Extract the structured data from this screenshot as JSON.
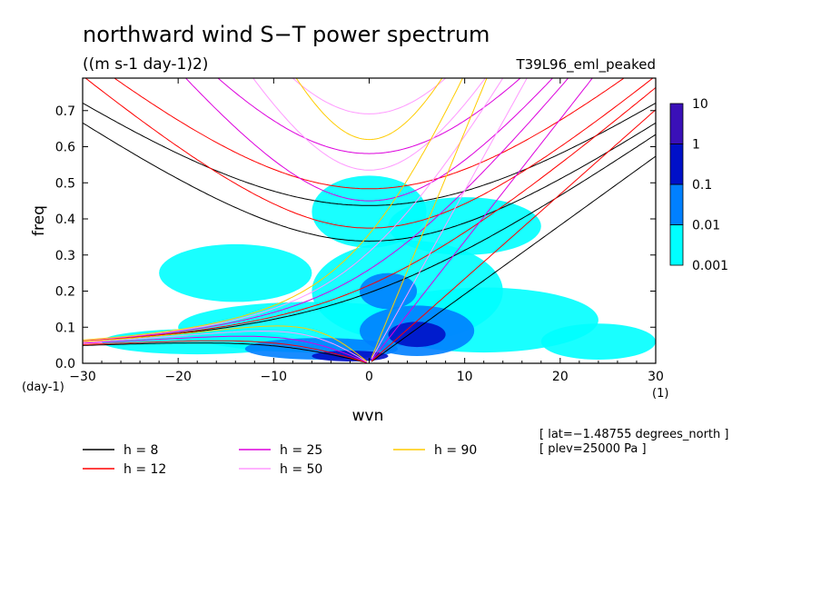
{
  "chart_data": {
    "type": "heatmap",
    "title": "northward wind S−T power spectrum",
    "units": "((m s-1 day-1)2)",
    "run_label": "T39L96_eml_peaked",
    "xlabel": "wvn",
    "ylabel": "freq",
    "x_units": "(1)",
    "y_units": "(day-1)",
    "xlim": [
      -30,
      30
    ],
    "ylim": [
      0,
      0.79
    ],
    "x_ticks": [
      -30,
      -20,
      -10,
      0,
      10,
      20,
      30
    ],
    "x_tick_labels": [
      "−30",
      "−20",
      "−10",
      "0",
      "10",
      "20",
      "30"
    ],
    "y_ticks": [
      0.0,
      0.1,
      0.2,
      0.3,
      0.4,
      0.5,
      0.6,
      0.7
    ],
    "y_tick_labels": [
      "0.0",
      "0.1",
      "0.2",
      "0.3",
      "0.4",
      "0.5",
      "0.6",
      "0.7"
    ],
    "colorbar": {
      "levels": [
        "0.001",
        "0.01",
        "0.1",
        "1",
        "10"
      ],
      "colors": [
        "#00ffff",
        "#0080ff",
        "#0010c8",
        "#3a10b8"
      ]
    },
    "power_blobs": [
      {
        "x": -18,
        "y": 0.06,
        "rx": 10,
        "ry": 0.035,
        "level": 0
      },
      {
        "x": -6,
        "y": 0.1,
        "rx": 14,
        "ry": 0.07,
        "level": 0
      },
      {
        "x": 4,
        "y": 0.2,
        "rx": 10,
        "ry": 0.14,
        "level": 0
      },
      {
        "x": 12,
        "y": 0.12,
        "rx": 12,
        "ry": 0.09,
        "level": 0
      },
      {
        "x": 24,
        "y": 0.06,
        "rx": 6,
        "ry": 0.05,
        "level": 0
      },
      {
        "x": 0,
        "y": 0.42,
        "rx": 6,
        "ry": 0.1,
        "level": 0
      },
      {
        "x": -14,
        "y": 0.25,
        "rx": 8,
        "ry": 0.08,
        "level": 0
      },
      {
        "x": 10,
        "y": 0.38,
        "rx": 8,
        "ry": 0.08,
        "level": 0
      },
      {
        "x": -5,
        "y": 0.04,
        "rx": 8,
        "ry": 0.03,
        "level": 1
      },
      {
        "x": 5,
        "y": 0.09,
        "rx": 6,
        "ry": 0.07,
        "level": 1
      },
      {
        "x": 2,
        "y": 0.2,
        "rx": 3,
        "ry": 0.05,
        "level": 1
      },
      {
        "x": -2,
        "y": 0.02,
        "rx": 4,
        "ry": 0.015,
        "level": 2
      },
      {
        "x": 5,
        "y": 0.08,
        "rx": 3,
        "ry": 0.035,
        "level": 2
      }
    ],
    "dispersion_curves": [
      {
        "name": "h = 8",
        "h": 8,
        "color": "#000000"
      },
      {
        "name": "h = 12",
        "h": 12,
        "color": "#ff0000"
      },
      {
        "name": "h = 25",
        "h": 25,
        "color": "#dd00dd"
      },
      {
        "name": "h = 50",
        "h": 50,
        "color": "#ff99ff"
      },
      {
        "name": "h = 90",
        "h": 90,
        "color": "#ffcc00"
      }
    ],
    "legend_labels": [
      "h =  8",
      "h = 12",
      "h = 25",
      "h = 50",
      "h = 90"
    ],
    "annotations": [
      "[ lat=−1.48755 degrees_north ]",
      "[ plev=25000 Pa ]"
    ]
  }
}
